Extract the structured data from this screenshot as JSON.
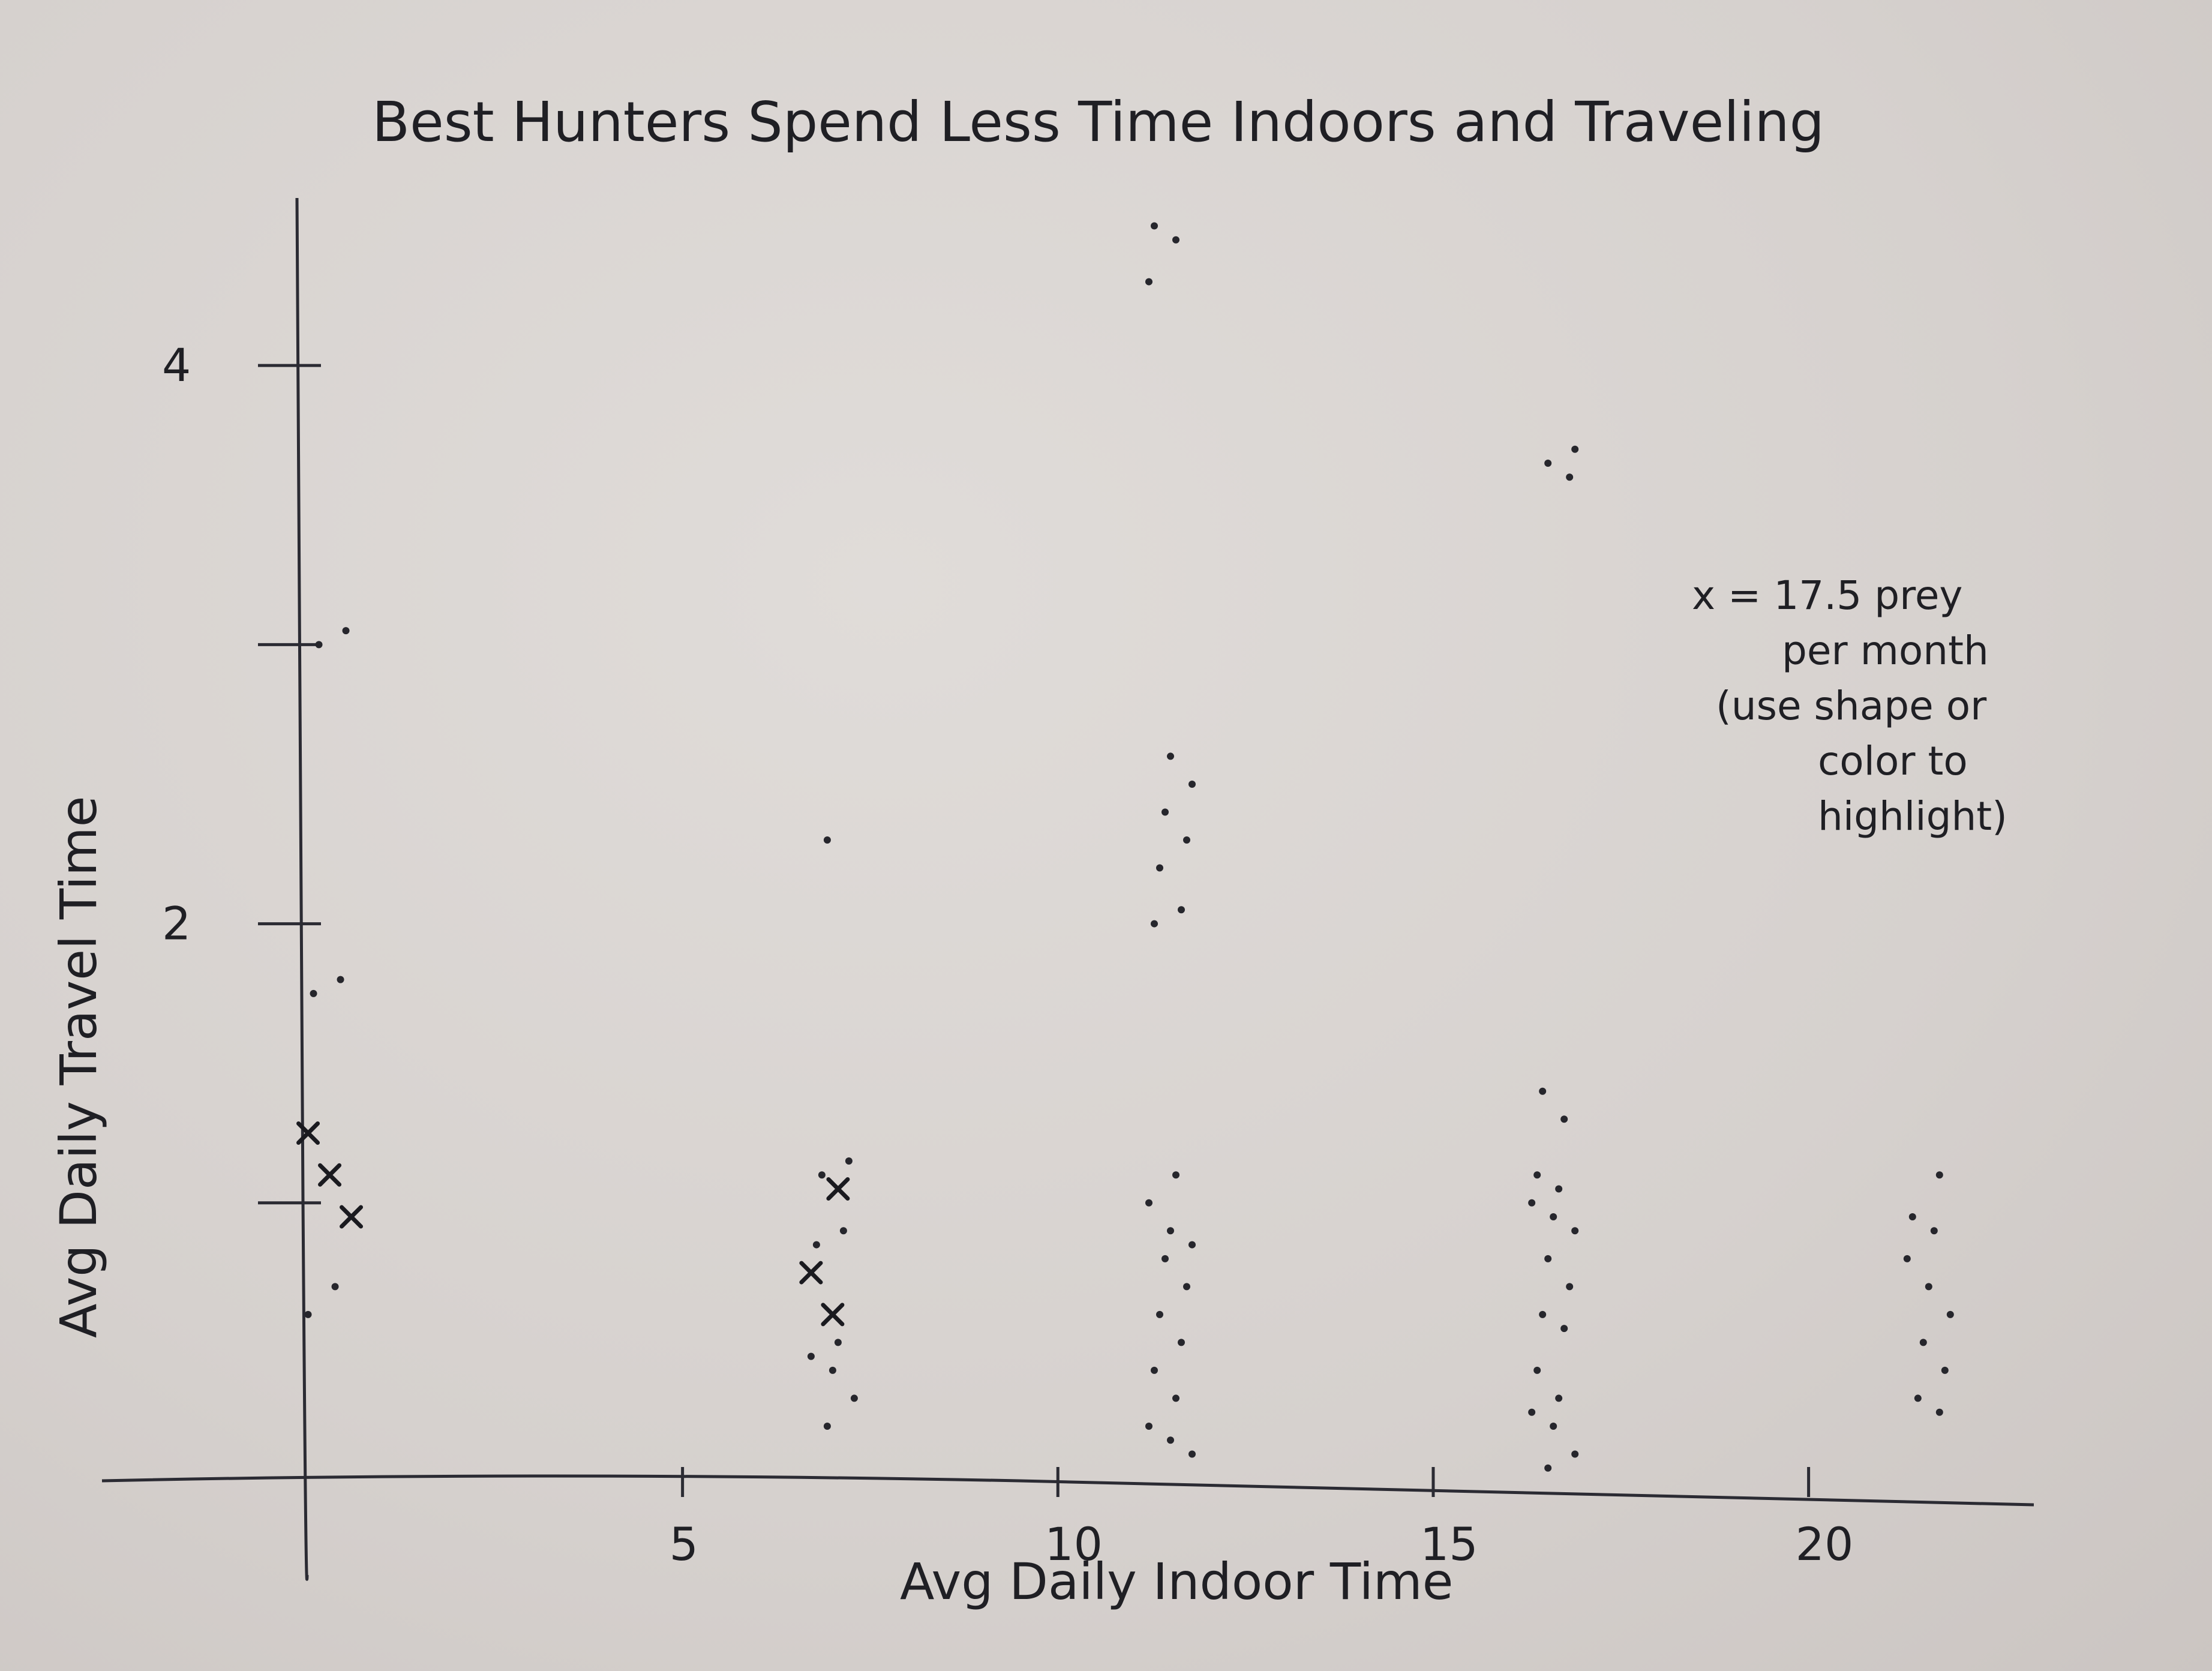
{
  "chart_data": {
    "type": "scatter",
    "title": "Best Hunters Spend Less Time Indoors and Traveling",
    "xlabel": "Avg Daily Indoor Time",
    "ylabel": "Avg Daily Travel Time",
    "xlim": [
      0,
      23
    ],
    "ylim": [
      0,
      4.6
    ],
    "x_ticks": [
      {
        "value": 5,
        "label": "5"
      },
      {
        "value": 10,
        "label": "10"
      },
      {
        "value": 15,
        "label": "15"
      },
      {
        "value": 20,
        "label": "20"
      }
    ],
    "y_ticks": [
      {
        "value": 1,
        "label": ""
      },
      {
        "value": 2,
        "label": "2"
      },
      {
        "value": 3,
        "label": ""
      },
      {
        "value": 4,
        "label": "4"
      }
    ],
    "grid": false,
    "annotation": {
      "lines": [
        "x = 17.5 prey",
        "per month",
        "(use shape or",
        "color to",
        "highlight)"
      ]
    },
    "groups": [
      {
        "x": 0.3,
        "marker": "x",
        "points": [
          1.25,
          1.1,
          0.95
        ]
      },
      {
        "x": 0.3,
        "marker": "dot",
        "points": [
          3.05,
          3.0,
          1.8,
          1.75,
          0.7,
          0.6
        ]
      },
      {
        "x": 7.0,
        "marker": "x",
        "points": [
          1.05,
          0.75,
          0.6
        ]
      },
      {
        "x": 7.0,
        "marker": "dot",
        "points": [
          2.3,
          1.15,
          1.1,
          0.9,
          0.85,
          0.5,
          0.45,
          0.4,
          0.3,
          0.2
        ]
      },
      {
        "x": 11.5,
        "marker": "dot",
        "points": [
          4.5,
          4.45,
          4.3,
          2.6,
          2.5,
          2.4,
          2.3,
          2.2,
          2.05,
          2.0,
          1.1,
          1.0,
          0.9,
          0.85,
          0.8,
          0.7,
          0.6,
          0.5,
          0.4,
          0.3,
          0.2,
          0.15,
          0.1
        ]
      },
      {
        "x": 16.6,
        "marker": "dot",
        "points": [
          3.7,
          3.65,
          3.6,
          1.4,
          1.3,
          1.1,
          1.05,
          1.0,
          0.95,
          0.9,
          0.8,
          0.7,
          0.6,
          0.55,
          0.4,
          0.3,
          0.25,
          0.2,
          0.1,
          0.05
        ]
      },
      {
        "x": 21.6,
        "marker": "dot",
        "points": [
          1.1,
          0.95,
          0.9,
          0.8,
          0.7,
          0.6,
          0.5,
          0.4,
          0.3,
          0.25
        ]
      }
    ]
  }
}
